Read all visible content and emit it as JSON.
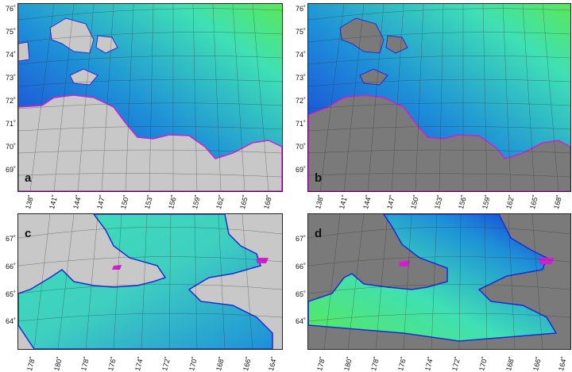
{
  "panels": {
    "a": {
      "letter": "a",
      "land_color": "#c8c8c8",
      "lat_labels": [
        "76˚",
        "75˚",
        "74˚",
        "73˚",
        "72˚",
        "71˚",
        "70˚",
        "69˚"
      ],
      "lon_labels": [
        "138˚",
        "141˚",
        "144˚",
        "147˚",
        "150˚",
        "153˚",
        "156˚",
        "159˚",
        "162˚",
        "165˚",
        "168˚"
      ]
    },
    "b": {
      "letter": "b",
      "land_color": "#7a7a7a",
      "lat_labels": [
        "76˚",
        "75˚",
        "74˚",
        "73˚",
        "72˚",
        "71˚",
        "70˚",
        "69˚"
      ],
      "lon_labels": [
        "138˚",
        "141˚",
        "144˚",
        "147˚",
        "150˚",
        "153˚",
        "156˚",
        "159˚",
        "162˚",
        "165˚",
        "168˚"
      ]
    },
    "c": {
      "letter": "c",
      "land_color": "#c8c8c8",
      "lat_labels": [
        "67˚",
        "66˚",
        "65˚",
        "64˚"
      ],
      "lon_labels": [
        "178˚",
        "180˚",
        "178˚",
        "176˚",
        "174˚",
        "172˚",
        "170˚",
        "168˚",
        "166˚",
        "164˚"
      ]
    },
    "d": {
      "letter": "d",
      "land_color": "#7a7a7a",
      "lat_labels": [
        "67˚",
        "66˚",
        "65˚",
        "64˚"
      ],
      "lon_labels": [
        "178˚",
        "180˚",
        "178˚",
        "176˚",
        "174˚",
        "172˚",
        "170˚",
        "168˚",
        "166˚",
        "164˚"
      ]
    }
  },
  "colors": {
    "deep": "#1a2bd6",
    "mid": "#1e8fd8",
    "shallow": "#3fe0b5",
    "shelf": "#59e85a",
    "edge": "#d020d0"
  }
}
